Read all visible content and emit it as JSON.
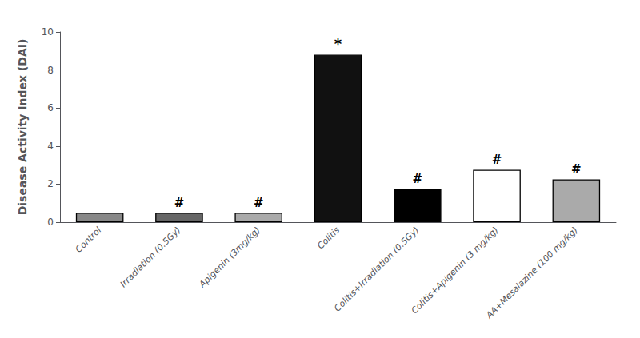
{
  "chart_data": {
    "type": "bar",
    "categories": [
      "Control",
      "Irradiation (0.5Gy)",
      "Apigenin (3mg/kg)",
      "Colitis",
      "Colitis+Irradiation (0.5Gy)",
      "Colitis+Apigenin (3 mg/kg)",
      "AA+Mesalazine (100 mg/kg)"
    ],
    "values": [
      0.5,
      0.5,
      0.5,
      8.8,
      1.75,
      2.75,
      2.25
    ],
    "colors": [
      "#888888",
      "#666666",
      "#aaaaaa",
      "#111111",
      "#000000",
      "#ffffff",
      "#aaaaaa"
    ],
    "ylabel": "Disease Activity Index (DAI)",
    "ylim": [
      0,
      10
    ],
    "yticks": [
      0,
      2,
      4,
      6,
      8,
      10
    ],
    "grid": false,
    "annotations": [
      {
        "text": "*",
        "category": "Colitis"
      },
      {
        "text": "#",
        "category": "Irradiation (0.5Gy)"
      },
      {
        "text": "#",
        "category": "Apigenin (3mg/kg)"
      },
      {
        "text": "#",
        "category": "Colitis+Irradiation (0.5Gy)"
      },
      {
        "text": "#",
        "category": "Colitis+Apigenin (3 mg/kg)"
      },
      {
        "text": "#",
        "category": "AA+Mesalazine (100 mg/kg)"
      }
    ]
  }
}
